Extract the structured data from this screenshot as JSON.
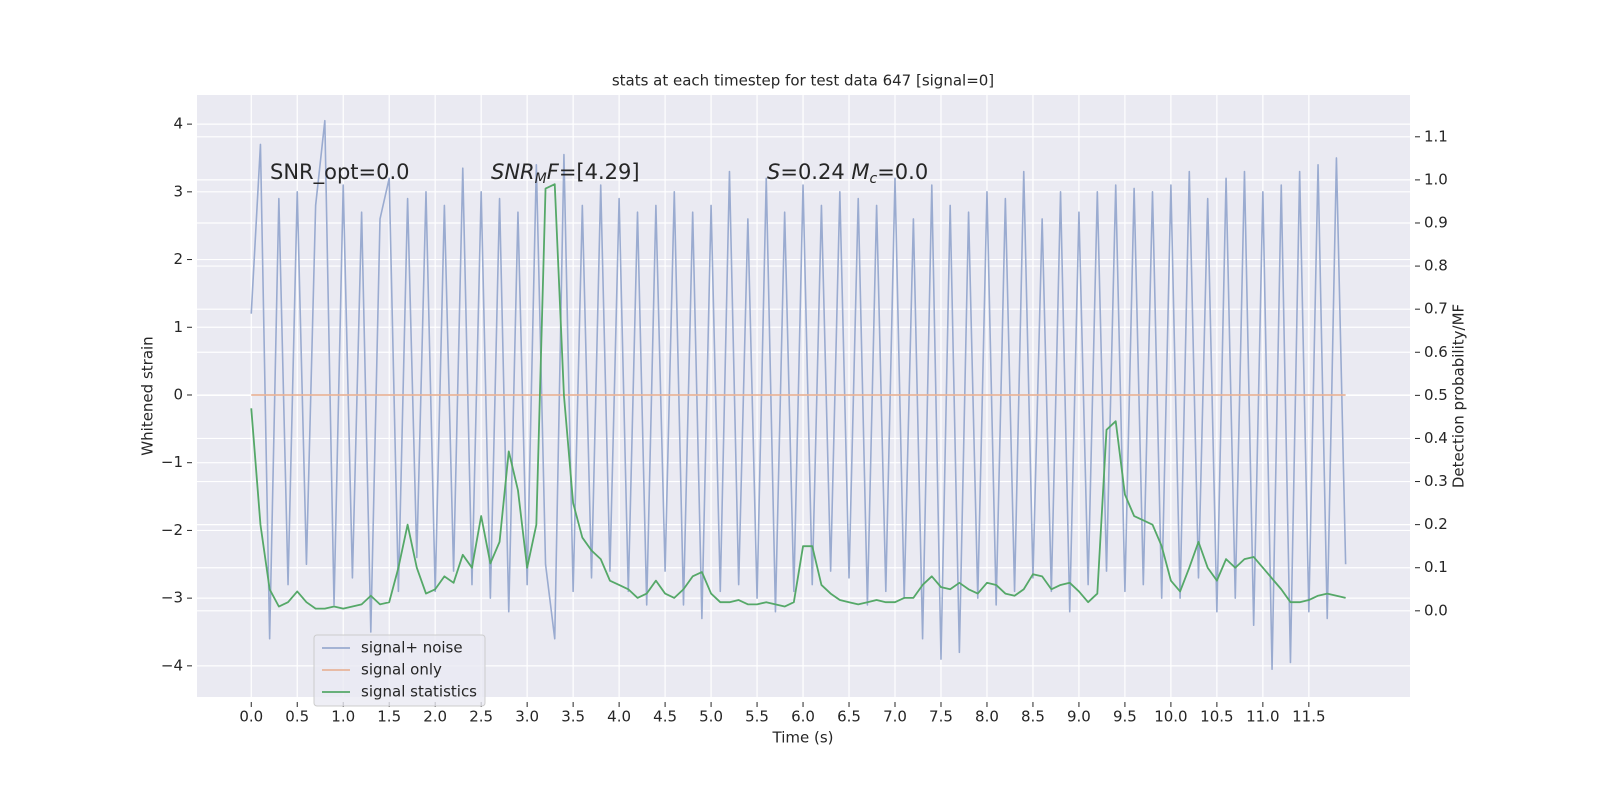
{
  "chart_data": {
    "type": "line",
    "title": "stats at each timestep for test data 647 [signal=0]",
    "xlabel": "Time (s)",
    "ylabel": "Whitened strain",
    "y2label": "Detection probability/MF",
    "annotations": [
      [
        {
          "t": "SNR_opt=0.0",
          "style": "normal"
        }
      ],
      [
        {
          "t": "SNR",
          "style": "italic"
        },
        {
          "t": "M",
          "style": "sub"
        },
        {
          "t": "F",
          "style": "italic"
        },
        {
          "t": "=[4.29]",
          "style": "normal"
        }
      ],
      [
        {
          "t": "S",
          "style": "italic"
        },
        {
          "t": "=0.24   ",
          "style": "normal"
        },
        {
          "t": "M",
          "style": "italic"
        },
        {
          "t": "c",
          "style": "sub"
        },
        {
          "t": "=0.0",
          "style": "normal"
        }
      ]
    ],
    "x": [
      0,
      0.1,
      0.2,
      0.3,
      0.4,
      0.5,
      0.6,
      0.7,
      0.8,
      0.9,
      1,
      1.1,
      1.2,
      1.3,
      1.4,
      1.5,
      1.6,
      1.7,
      1.8,
      1.9,
      2,
      2.1,
      2.2,
      2.3,
      2.4,
      2.5,
      2.6,
      2.7,
      2.8,
      2.9,
      3,
      3.1,
      3.2,
      3.3,
      3.4,
      3.5,
      3.6,
      3.7,
      3.8,
      3.9,
      4,
      4.1,
      4.2,
      4.3,
      4.4,
      4.5,
      4.6,
      4.7,
      4.8,
      4.9,
      5,
      5.1,
      5.2,
      5.3,
      5.4,
      5.5,
      5.6,
      5.7,
      5.8,
      5.9,
      6,
      6.1,
      6.2,
      6.3,
      6.4,
      6.5,
      6.6,
      6.7,
      6.8,
      6.9,
      7,
      7.1,
      7.2,
      7.3,
      7.4,
      7.5,
      7.6,
      7.7,
      7.8,
      7.9,
      8,
      8.1,
      8.2,
      8.3,
      8.4,
      8.5,
      8.6,
      8.7,
      8.8,
      8.9,
      9,
      9.1,
      9.2,
      9.3,
      9.4,
      9.5,
      9.6,
      9.7,
      9.8,
      9.9,
      10,
      10.1,
      10.2,
      10.3,
      10.4,
      10.5,
      10.6,
      10.7,
      10.8,
      10.9,
      11,
      11.1,
      11.2,
      11.3,
      11.4,
      11.5,
      11.6,
      11.7,
      11.8,
      11.9
    ],
    "series": [
      {
        "name": "signal+ noise",
        "color": "#9aabd0",
        "axis": "y",
        "values": [
          1.2,
          3.7,
          -3.6,
          2.9,
          -2.8,
          3.0,
          -2.5,
          2.8,
          4.05,
          -3.1,
          3.1,
          -2.7,
          2.7,
          -3.5,
          2.6,
          3.2,
          -2.9,
          2.9,
          -2.4,
          3.0,
          -2.9,
          2.8,
          -2.6,
          3.35,
          -2.8,
          3.0,
          -3.0,
          2.9,
          -3.2,
          2.7,
          -2.8,
          3.4,
          -2.5,
          -3.6,
          3.55,
          -2.9,
          2.8,
          -2.7,
          3.1,
          -2.6,
          2.9,
          -2.9,
          2.7,
          -3.1,
          2.8,
          -2.6,
          3.0,
          -3.1,
          2.7,
          -3.3,
          2.8,
          -2.9,
          3.3,
          -2.8,
          2.6,
          -3.0,
          3.2,
          -3.2,
          2.7,
          -2.9,
          3.1,
          -2.8,
          2.8,
          -2.6,
          3.0,
          -2.7,
          2.9,
          -3.1,
          2.8,
          -2.9,
          3.2,
          -3.0,
          2.6,
          -3.6,
          3.1,
          -3.9,
          2.8,
          -3.8,
          2.7,
          -3.0,
          3.0,
          -3.1,
          2.9,
          -2.9,
          3.3,
          -2.7,
          2.6,
          -2.9,
          3.0,
          -3.2,
          2.7,
          -2.8,
          3.0,
          -2.6,
          3.1,
          -2.9,
          3.05,
          -2.8,
          3.0,
          -3.0,
          3.1,
          -3.0,
          3.3,
          -2.7,
          2.9,
          -3.2,
          3.2,
          -3.0,
          3.3,
          -3.4,
          3.0,
          -4.05,
          3.1,
          -3.95,
          3.3,
          -3.2,
          3.4,
          -3.3,
          3.5,
          -2.5
        ]
      },
      {
        "name": "signal only",
        "color": "#e8b49a",
        "axis": "y",
        "values": [
          0,
          0,
          0,
          0,
          0,
          0,
          0,
          0,
          0,
          0,
          0,
          0,
          0,
          0,
          0,
          0,
          0,
          0,
          0,
          0,
          0,
          0,
          0,
          0,
          0,
          0,
          0,
          0,
          0,
          0,
          0,
          0,
          0,
          0,
          0,
          0,
          0,
          0,
          0,
          0,
          0,
          0,
          0,
          0,
          0,
          0,
          0,
          0,
          0,
          0,
          0,
          0,
          0,
          0,
          0,
          0,
          0,
          0,
          0,
          0,
          0,
          0,
          0,
          0,
          0,
          0,
          0,
          0,
          0,
          0,
          0,
          0,
          0,
          0,
          0,
          0,
          0,
          0,
          0,
          0,
          0,
          0,
          0,
          0,
          0,
          0,
          0,
          0,
          0,
          0,
          0,
          0,
          0,
          0,
          0,
          0,
          0,
          0,
          0,
          0,
          0,
          0,
          0,
          0,
          0,
          0,
          0,
          0,
          0,
          0,
          0,
          0,
          0,
          0,
          0,
          0,
          0,
          0,
          0,
          0
        ]
      },
      {
        "name": "signal statistics",
        "color": "#55a868",
        "axis": "y2",
        "values": [
          0.47,
          0.2,
          0.05,
          0.01,
          0.02,
          0.045,
          0.02,
          0.005,
          0.005,
          0.01,
          0.005,
          0.01,
          0.015,
          0.035,
          0.015,
          0.02,
          0.1,
          0.2,
          0.1,
          0.04,
          0.05,
          0.08,
          0.065,
          0.13,
          0.1,
          0.22,
          0.11,
          0.16,
          0.37,
          0.28,
          0.1,
          0.2,
          0.98,
          0.99,
          0.5,
          0.25,
          0.17,
          0.14,
          0.12,
          0.07,
          0.06,
          0.05,
          0.03,
          0.04,
          0.07,
          0.04,
          0.03,
          0.05,
          0.08,
          0.09,
          0.04,
          0.02,
          0.02,
          0.025,
          0.015,
          0.015,
          0.02,
          0.015,
          0.01,
          0.02,
          0.15,
          0.15,
          0.06,
          0.04,
          0.025,
          0.02,
          0.015,
          0.02,
          0.025,
          0.02,
          0.02,
          0.03,
          0.03,
          0.06,
          0.08,
          0.055,
          0.05,
          0.065,
          0.05,
          0.04,
          0.065,
          0.06,
          0.04,
          0.035,
          0.05,
          0.085,
          0.08,
          0.05,
          0.06,
          0.065,
          0.045,
          0.02,
          0.04,
          0.42,
          0.44,
          0.27,
          0.22,
          0.21,
          0.2,
          0.15,
          0.07,
          0.045,
          0.1,
          0.16,
          0.1,
          0.07,
          0.12,
          0.1,
          0.12,
          0.125,
          0.1,
          0.075,
          0.05,
          0.02,
          0.02,
          0.025,
          0.035,
          0.04,
          0.035,
          0.03
        ]
      }
    ],
    "xlim": [
      -0.59,
      12.6
    ],
    "ylim": [
      -4.46,
      4.43
    ],
    "y2lim": [
      -0.2,
      1.197
    ],
    "xticks": [
      {
        "value": 0,
        "label": "0.0"
      },
      {
        "value": 0.5,
        "label": "0.5"
      },
      {
        "value": 1,
        "label": "1.0"
      },
      {
        "value": 1.5,
        "label": "1.5"
      },
      {
        "value": 2,
        "label": "2.0"
      },
      {
        "value": 2.5,
        "label": "2.5"
      },
      {
        "value": 3,
        "label": "3.0"
      },
      {
        "value": 3.5,
        "label": "3.5"
      },
      {
        "value": 4,
        "label": "4.0"
      },
      {
        "value": 4.5,
        "label": "4.5"
      },
      {
        "value": 5,
        "label": "5.0"
      },
      {
        "value": 5.5,
        "label": "5.5"
      },
      {
        "value": 6,
        "label": "6.0"
      },
      {
        "value": 6.5,
        "label": "6.5"
      },
      {
        "value": 7,
        "label": "7.0"
      },
      {
        "value": 7.5,
        "label": "7.5"
      },
      {
        "value": 8,
        "label": "8.0"
      },
      {
        "value": 8.5,
        "label": "8.5"
      },
      {
        "value": 9,
        "label": "9.0"
      },
      {
        "value": 9.5,
        "label": "9.5"
      },
      {
        "value": 10,
        "label": "10.0"
      },
      {
        "value": 10.5,
        "label": "10.5"
      },
      {
        "value": 11,
        "label": "11.0"
      },
      {
        "value": 11.5,
        "label": "11.5"
      }
    ],
    "yticks": [
      {
        "value": -4,
        "label": "−4"
      },
      {
        "value": -3,
        "label": "−3"
      },
      {
        "value": -2,
        "label": "−2"
      },
      {
        "value": -1,
        "label": "−1"
      },
      0,
      1,
      2,
      3,
      4
    ],
    "y2ticks": [
      {
        "value": 0,
        "label": "0.0"
      },
      {
        "value": 0.1,
        "label": "0.1"
      },
      {
        "value": 0.2,
        "label": "0.2"
      },
      {
        "value": 0.3,
        "label": "0.3"
      },
      {
        "value": 0.4,
        "label": "0.4"
      },
      {
        "value": 0.5,
        "label": "0.5"
      },
      {
        "value": 0.6,
        "label": "0.6"
      },
      {
        "value": 0.7,
        "label": "0.7"
      },
      {
        "value": 0.8,
        "label": "0.8"
      },
      {
        "value": 0.9,
        "label": "0.9"
      },
      {
        "value": 1,
        "label": "1.0"
      },
      {
        "value": 1.1,
        "label": "1.1"
      }
    ],
    "grid": true,
    "background": "#eaeaf2"
  }
}
